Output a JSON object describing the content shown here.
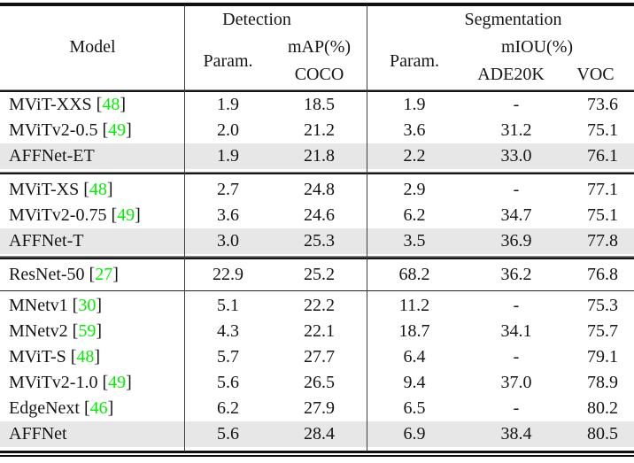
{
  "colors": {
    "citation_link": "#00F000",
    "highlight_row": "#E7E7E7",
    "rule": "#111111"
  },
  "table": {
    "header": {
      "model": "Model",
      "detection_group": "Detection",
      "segmentation_group": "Segmentation",
      "det_param": "Param.",
      "det_map": "mAP(%)",
      "det_coco": "COCO",
      "seg_param": "Param.",
      "seg_miou": "mIOU(%)",
      "seg_ade20k": "ADE20K",
      "seg_voc": "VOC"
    },
    "columns": [
      "Model",
      "Detection Param.",
      "Detection mAP(%) COCO",
      "Segmentation Param.",
      "Segmentation mIOU(%) ADE20K",
      "Segmentation mIOU(%) VOC"
    ],
    "groups": [
      {
        "separator_after": "thick",
        "rows": [
          {
            "model": "MViT-XXS",
            "cite": "48",
            "highlight": false,
            "values": [
              "1.9",
              "18.5",
              "1.9",
              "-",
              "73.6"
            ]
          },
          {
            "model": "MViTv2-0.5",
            "cite": "49",
            "highlight": false,
            "values": [
              "2.0",
              "21.2",
              "3.6",
              "31.2",
              "75.1"
            ]
          },
          {
            "model": "AFFNet-ET",
            "cite": "",
            "highlight": true,
            "values": [
              "1.9",
              "21.8",
              "2.2",
              "33.0",
              "76.1"
            ]
          }
        ]
      },
      {
        "separator_after": "thick",
        "rows": [
          {
            "model": "MViT-XS",
            "cite": "48",
            "highlight": false,
            "values": [
              "2.7",
              "24.8",
              "2.9",
              "-",
              "77.1"
            ]
          },
          {
            "model": "MViTv2-0.75",
            "cite": "49",
            "highlight": false,
            "values": [
              "3.6",
              "24.6",
              "6.2",
              "34.7",
              "75.1"
            ]
          },
          {
            "model": "AFFNet-T",
            "cite": "",
            "highlight": true,
            "values": [
              "3.0",
              "25.3",
              "3.5",
              "36.9",
              "77.8"
            ]
          }
        ]
      },
      {
        "separator_after": "thin",
        "rows": [
          {
            "model": "ResNet-50",
            "cite": "27",
            "highlight": false,
            "tall": true,
            "values": [
              "22.9",
              "25.2",
              "68.2",
              "36.2",
              "76.8"
            ]
          }
        ]
      },
      {
        "separator_after": "none",
        "rows": [
          {
            "model": "MNetv1",
            "cite": "30",
            "highlight": false,
            "values": [
              "5.1",
              "22.2",
              "11.2",
              "-",
              "75.3"
            ]
          },
          {
            "model": "MNetv2",
            "cite": "59",
            "highlight": false,
            "values": [
              "4.3",
              "22.1",
              "18.7",
              "34.1",
              "75.7"
            ]
          },
          {
            "model": "MViT-S",
            "cite": "48",
            "highlight": false,
            "values": [
              "5.7",
              "27.7",
              "6.4",
              "-",
              "79.1"
            ]
          },
          {
            "model": "MViTv2-1.0",
            "cite": "49",
            "highlight": false,
            "values": [
              "5.6",
              "26.5",
              "9.4",
              "37.0",
              "78.9"
            ]
          },
          {
            "model": "EdgeNext",
            "cite": "46",
            "highlight": false,
            "values": [
              "6.2",
              "27.9",
              "6.5",
              "-",
              "80.2"
            ]
          },
          {
            "model": "AFFNet",
            "cite": "",
            "highlight": true,
            "values": [
              "5.6",
              "28.4",
              "6.9",
              "38.4",
              "80.5"
            ]
          }
        ]
      }
    ]
  }
}
